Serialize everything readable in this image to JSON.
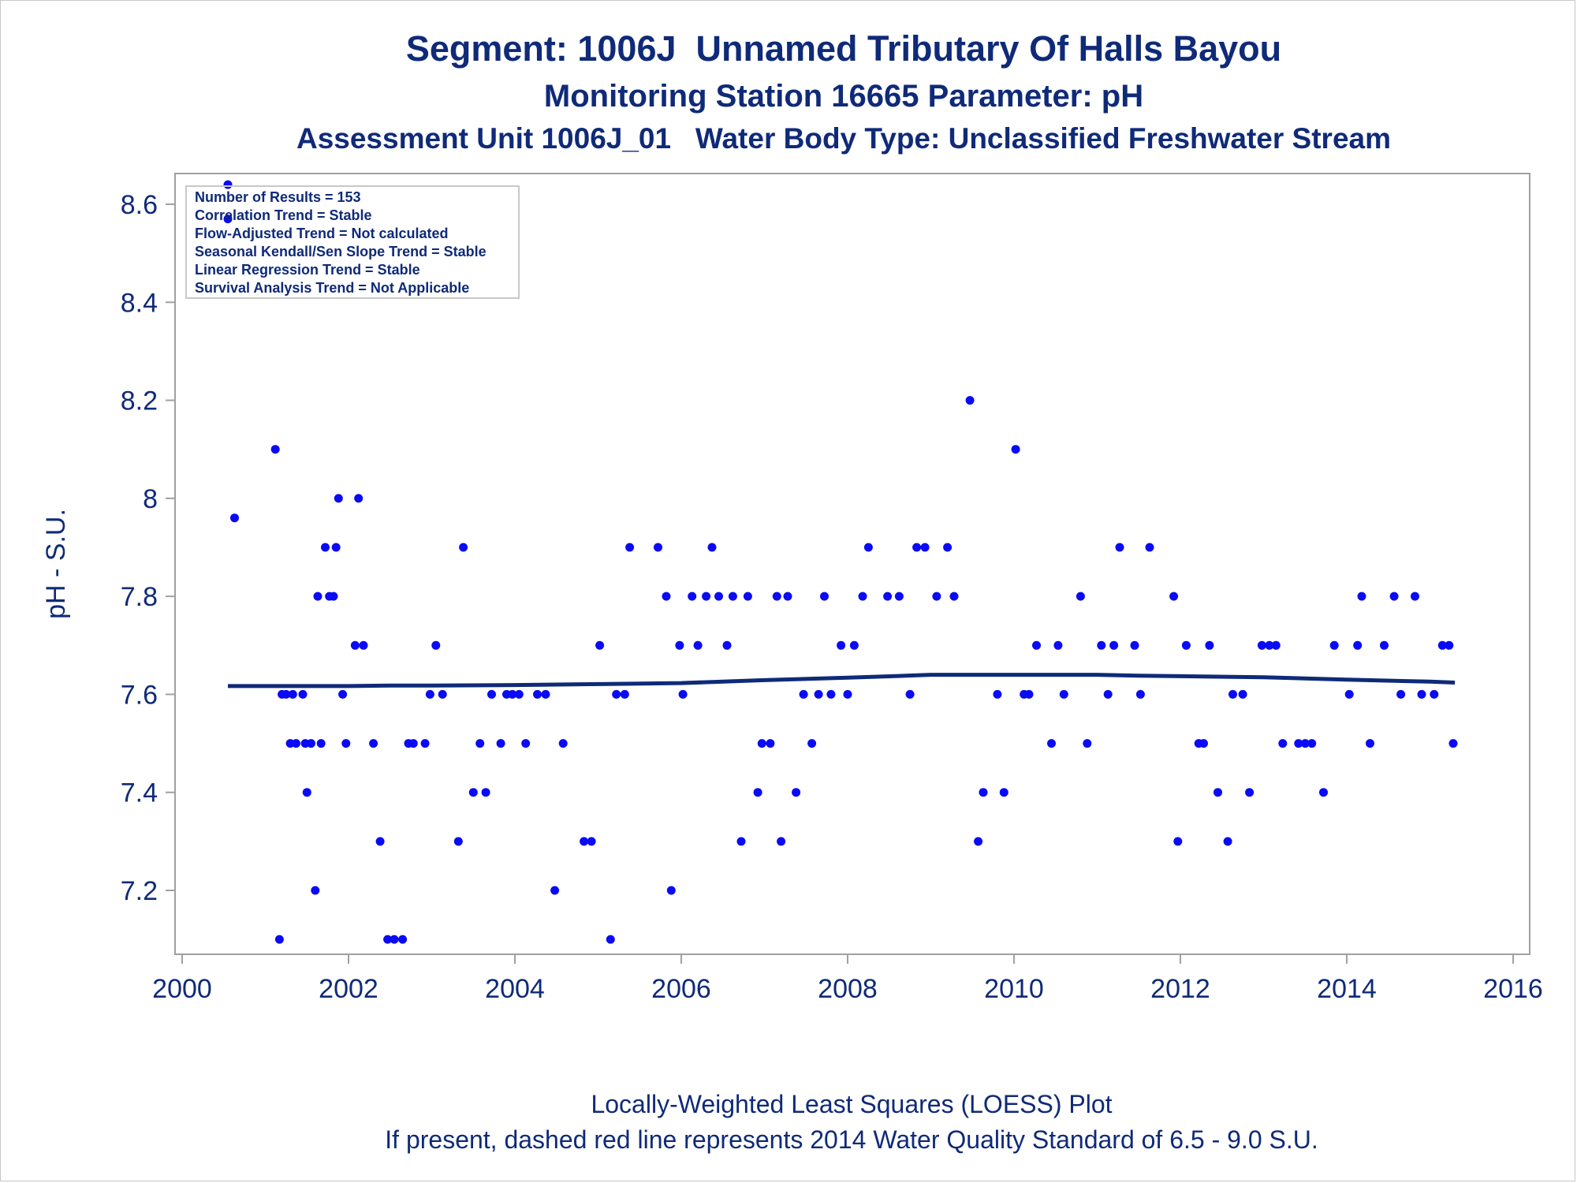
{
  "titles": {
    "line1": "Segment: 1006J  Unnamed Tributary Of Halls Bayou",
    "line2": "Monitoring Station 16665 Parameter: pH",
    "line3": "Assessment Unit 1006J_01   Water Body Type: Unclassified Freshwater Stream"
  },
  "footnotes": {
    "line1": "Locally-Weighted Least Squares (LOESS) Plot",
    "line2": "If present, dashed red line represents 2014 Water Quality Standard of 6.5 - 9.0 S.U."
  },
  "stats_box": [
    "Number of Results = 153",
    "Correlation Trend = Stable",
    "Flow-Adjusted Trend = Not calculated",
    "Seasonal Kendall/Sen Slope Trend = Stable",
    "Linear Regression Trend = Stable",
    "Survival Analysis Trend = Not Applicable"
  ],
  "colors": {
    "points": "#0a0af5",
    "loess": "#0f2a78",
    "text": "#0f2a78",
    "frame": "#a0a0a0"
  },
  "chart_data": {
    "type": "scatter",
    "xlabel": "",
    "ylabel": "pH - S.U.",
    "xlim": [
      2000,
      2016
    ],
    "ylim": [
      7.09,
      8.67
    ],
    "xticks": [
      2000,
      2002,
      2004,
      2006,
      2008,
      2010,
      2012,
      2014,
      2016
    ],
    "yticks": [
      7.2,
      7.4,
      7.6,
      7.8,
      8.0,
      8.2,
      8.4,
      8.6
    ],
    "ytick_labels": [
      "7.2",
      "7.4",
      "7.6",
      "7.8",
      "8",
      "8.2",
      "8.4",
      "8.6"
    ],
    "grid": false,
    "series": [
      {
        "type": "scatter",
        "points": [
          [
            2000.55,
            8.64
          ],
          [
            2000.55,
            8.57
          ],
          [
            2000.63,
            7.96
          ],
          [
            2001.12,
            8.1
          ],
          [
            2001.17,
            7.1
          ],
          [
            2001.2,
            7.6
          ],
          [
            2001.25,
            7.6
          ],
          [
            2001.3,
            7.5
          ],
          [
            2001.33,
            7.6
          ],
          [
            2001.37,
            7.5
          ],
          [
            2001.45,
            7.6
          ],
          [
            2001.48,
            7.5
          ],
          [
            2001.5,
            7.4
          ],
          [
            2001.55,
            7.5
          ],
          [
            2001.6,
            7.2
          ],
          [
            2001.63,
            7.8
          ],
          [
            2001.67,
            7.5
          ],
          [
            2001.72,
            7.9
          ],
          [
            2001.77,
            7.8
          ],
          [
            2001.82,
            7.8
          ],
          [
            2001.85,
            7.9
          ],
          [
            2001.88,
            8.0
          ],
          [
            2001.93,
            7.6
          ],
          [
            2001.97,
            7.5
          ],
          [
            2002.08,
            7.7
          ],
          [
            2002.12,
            8.0
          ],
          [
            2002.18,
            7.7
          ],
          [
            2002.3,
            7.5
          ],
          [
            2002.38,
            7.3
          ],
          [
            2002.47,
            7.1
          ],
          [
            2002.55,
            7.1
          ],
          [
            2002.65,
            7.1
          ],
          [
            2002.72,
            7.5
          ],
          [
            2002.78,
            7.5
          ],
          [
            2002.92,
            7.5
          ],
          [
            2002.98,
            7.6
          ],
          [
            2003.05,
            7.7
          ],
          [
            2003.13,
            7.6
          ],
          [
            2003.32,
            7.3
          ],
          [
            2003.38,
            7.9
          ],
          [
            2003.5,
            7.4
          ],
          [
            2003.58,
            7.5
          ],
          [
            2003.65,
            7.4
          ],
          [
            2003.72,
            7.6
          ],
          [
            2003.83,
            7.5
          ],
          [
            2003.9,
            7.6
          ],
          [
            2003.97,
            7.6
          ],
          [
            2004.05,
            7.6
          ],
          [
            2004.13,
            7.5
          ],
          [
            2004.27,
            7.6
          ],
          [
            2004.37,
            7.6
          ],
          [
            2004.48,
            7.2
          ],
          [
            2004.58,
            7.5
          ],
          [
            2004.83,
            7.3
          ],
          [
            2004.92,
            7.3
          ],
          [
            2005.02,
            7.7
          ],
          [
            2005.15,
            7.1
          ],
          [
            2005.22,
            7.6
          ],
          [
            2005.32,
            7.6
          ],
          [
            2005.38,
            7.9
          ],
          [
            2005.72,
            7.9
          ],
          [
            2005.82,
            7.8
          ],
          [
            2005.88,
            7.2
          ],
          [
            2005.98,
            7.7
          ],
          [
            2006.02,
            7.6
          ],
          [
            2006.13,
            7.8
          ],
          [
            2006.2,
            7.7
          ],
          [
            2006.3,
            7.8
          ],
          [
            2006.37,
            7.9
          ],
          [
            2006.45,
            7.8
          ],
          [
            2006.55,
            7.7
          ],
          [
            2006.62,
            7.8
          ],
          [
            2006.72,
            7.3
          ],
          [
            2006.8,
            7.8
          ],
          [
            2006.92,
            7.4
          ],
          [
            2006.97,
            7.5
          ],
          [
            2007.07,
            7.5
          ],
          [
            2007.15,
            7.8
          ],
          [
            2007.2,
            7.3
          ],
          [
            2007.28,
            7.8
          ],
          [
            2007.38,
            7.4
          ],
          [
            2007.47,
            7.6
          ],
          [
            2007.57,
            7.5
          ],
          [
            2007.65,
            7.6
          ],
          [
            2007.72,
            7.8
          ],
          [
            2007.8,
            7.6
          ],
          [
            2007.92,
            7.7
          ],
          [
            2008.0,
            7.6
          ],
          [
            2008.08,
            7.7
          ],
          [
            2008.18,
            7.8
          ],
          [
            2008.25,
            7.9
          ],
          [
            2008.48,
            7.8
          ],
          [
            2008.62,
            7.8
          ],
          [
            2008.75,
            7.6
          ],
          [
            2008.83,
            7.9
          ],
          [
            2008.93,
            7.9
          ],
          [
            2009.07,
            7.8
          ],
          [
            2009.2,
            7.9
          ],
          [
            2009.28,
            7.8
          ],
          [
            2009.47,
            8.2
          ],
          [
            2009.57,
            7.3
          ],
          [
            2009.63,
            7.4
          ],
          [
            2009.8,
            7.6
          ],
          [
            2009.88,
            7.4
          ],
          [
            2010.02,
            8.1
          ],
          [
            2010.12,
            7.6
          ],
          [
            2010.18,
            7.6
          ],
          [
            2010.27,
            7.7
          ],
          [
            2010.45,
            7.5
          ],
          [
            2010.53,
            7.7
          ],
          [
            2010.6,
            7.6
          ],
          [
            2010.8,
            7.8
          ],
          [
            2010.88,
            7.5
          ],
          [
            2011.05,
            7.7
          ],
          [
            2011.13,
            7.6
          ],
          [
            2011.2,
            7.7
          ],
          [
            2011.27,
            7.9
          ],
          [
            2011.45,
            7.7
          ],
          [
            2011.52,
            7.6
          ],
          [
            2011.63,
            7.9
          ],
          [
            2011.92,
            7.8
          ],
          [
            2011.97,
            7.3
          ],
          [
            2012.07,
            7.7
          ],
          [
            2012.22,
            7.5
          ],
          [
            2012.28,
            7.5
          ],
          [
            2012.35,
            7.7
          ],
          [
            2012.45,
            7.4
          ],
          [
            2012.57,
            7.3
          ],
          [
            2012.63,
            7.6
          ],
          [
            2012.75,
            7.6
          ],
          [
            2012.83,
            7.4
          ],
          [
            2012.98,
            7.7
          ],
          [
            2013.07,
            7.7
          ],
          [
            2013.15,
            7.7
          ],
          [
            2013.23,
            7.5
          ],
          [
            2013.42,
            7.5
          ],
          [
            2013.5,
            7.5
          ],
          [
            2013.58,
            7.5
          ],
          [
            2013.72,
            7.4
          ],
          [
            2013.85,
            7.7
          ],
          [
            2014.03,
            7.6
          ],
          [
            2014.13,
            7.7
          ],
          [
            2014.18,
            7.8
          ],
          [
            2014.28,
            7.5
          ],
          [
            2014.45,
            7.7
          ],
          [
            2014.57,
            7.8
          ],
          [
            2014.65,
            7.6
          ],
          [
            2014.82,
            7.8
          ],
          [
            2014.9,
            7.6
          ],
          [
            2015.05,
            7.6
          ],
          [
            2015.15,
            7.7
          ],
          [
            2015.23,
            7.7
          ],
          [
            2015.28,
            7.5
          ]
        ]
      },
      {
        "type": "line",
        "points": [
          [
            2000.55,
            7.617
          ],
          [
            2001.0,
            7.617
          ],
          [
            2002.0,
            7.617
          ],
          [
            2002.5,
            7.618
          ],
          [
            2003.0,
            7.618
          ],
          [
            2004.0,
            7.619
          ],
          [
            2005.0,
            7.621
          ],
          [
            2006.0,
            7.623
          ],
          [
            2007.0,
            7.629
          ],
          [
            2008.0,
            7.634
          ],
          [
            2008.7,
            7.638
          ],
          [
            2009.0,
            7.64
          ],
          [
            2010.0,
            7.64
          ],
          [
            2011.0,
            7.64
          ],
          [
            2011.5,
            7.638
          ],
          [
            2012.0,
            7.637
          ],
          [
            2013.0,
            7.635
          ],
          [
            2014.0,
            7.63
          ],
          [
            2015.0,
            7.626
          ],
          [
            2015.3,
            7.624
          ]
        ]
      }
    ]
  }
}
